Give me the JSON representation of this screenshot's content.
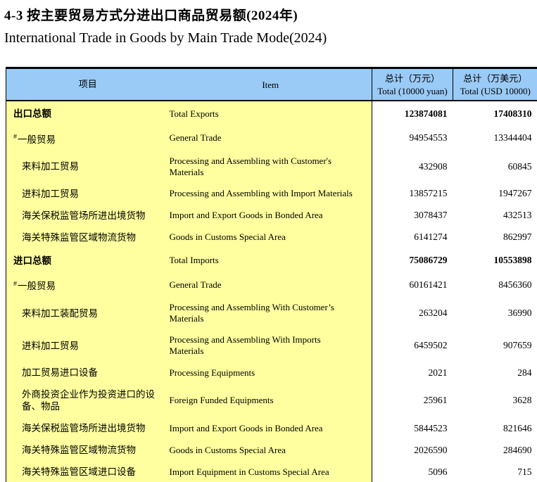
{
  "title": {
    "zh": "4-3 按主要贸易方式分进出口商品贸易额(2024年)",
    "en": "International Trade in Goods by Main Trade Mode(2024)"
  },
  "colors": {
    "header_bg": "#9ACAF6",
    "body_bg": "#FFFF9F",
    "border": "#000000"
  },
  "table": {
    "header": {
      "col_item_zh": "项目",
      "col_item_en": "Item",
      "col_yuan_zh": "总计（万元）",
      "col_yuan_en": "Total (10000 yuan)",
      "col_usd_zh": "总计（万美元）",
      "col_usd_en": "Total (USD 10000)"
    },
    "rows": [
      {
        "zh": "出口总额",
        "en": "Total Exports",
        "yuan": "123874081",
        "usd": "17408310",
        "bold": true,
        "hash": false,
        "indent": false
      },
      {
        "zh": "一般贸易",
        "en": "General Trade",
        "yuan": "94954553",
        "usd": "13344404",
        "bold": false,
        "hash": true,
        "indent": false
      },
      {
        "zh": "来料加工贸易",
        "en": "Processing and Assembling with Customer's Materials",
        "yuan": "432908",
        "usd": "60845",
        "bold": false,
        "hash": false,
        "indent": true
      },
      {
        "zh": "进料加工贸易",
        "en": "Processing and Assembling with Import Materials",
        "yuan": "13857215",
        "usd": "1947267",
        "bold": false,
        "hash": false,
        "indent": true
      },
      {
        "zh": "海关保税监管场所进出境货物",
        "en": "Import and Export Goods in Bonded Area",
        "yuan": "3078437",
        "usd": "432513",
        "bold": false,
        "hash": false,
        "indent": true
      },
      {
        "zh": "海关特殊监管区域物流货物",
        "en": "Goods in Customs Special Area",
        "yuan": "6141274",
        "usd": "862997",
        "bold": false,
        "hash": false,
        "indent": true
      },
      {
        "zh": "进口总额",
        "en": "Total Imports",
        "yuan": "75086729",
        "usd": "10553898",
        "bold": true,
        "hash": false,
        "indent": false
      },
      {
        "zh": "一般贸易",
        "en": "General Trade",
        "yuan": "60161421",
        "usd": "8456360",
        "bold": false,
        "hash": true,
        "indent": false
      },
      {
        "zh": "来料加工装配贸易",
        "en": "Processing and Assembling With Customer’s Materials",
        "yuan": "263204",
        "usd": "36990",
        "bold": false,
        "hash": false,
        "indent": true
      },
      {
        "zh": "进料加工贸易",
        "en": "Processing and Assembling With Imports Materials",
        "yuan": "6459502",
        "usd": "907659",
        "bold": false,
        "hash": false,
        "indent": true
      },
      {
        "zh": "加工贸易进口设备",
        "en": "Processing Equipments",
        "yuan": "2021",
        "usd": "284",
        "bold": false,
        "hash": false,
        "indent": true
      },
      {
        "zh": "外商投资企业作为投资进口的设备、物品",
        "en": "Foreign Funded Equipments",
        "yuan": "25961",
        "usd": "3628",
        "bold": false,
        "hash": false,
        "indent": true
      },
      {
        "zh": "海关保税监管场所进出境货物",
        "en": "Import and Export Goods in Bonded Area",
        "yuan": "5844523",
        "usd": "821646",
        "bold": false,
        "hash": false,
        "indent": true
      },
      {
        "zh": "海关特殊监管区域物流货物",
        "en": "Goods in Customs Special Area",
        "yuan": "2026590",
        "usd": "284690",
        "bold": false,
        "hash": false,
        "indent": true
      },
      {
        "zh": "海关特殊监管区域进口设备",
        "en": "Import Equipment in Customs Special Area",
        "yuan": "5096",
        "usd": "715",
        "bold": false,
        "hash": false,
        "indent": true
      }
    ]
  }
}
